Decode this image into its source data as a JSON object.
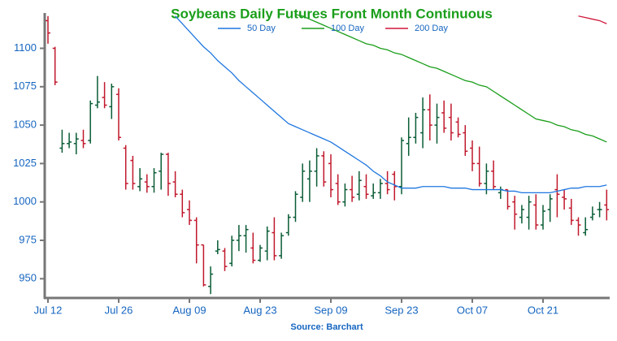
{
  "chart_data": {
    "type": "ohlc",
    "title": "Soybeans Daily Futures Front Month Continuous",
    "source": "Source: Barchart",
    "categories": [
      "Jul 12",
      null,
      null,
      null,
      null,
      null,
      null,
      null,
      null,
      null,
      "Jul 26",
      null,
      null,
      null,
      null,
      null,
      null,
      null,
      null,
      null,
      "Aug 09",
      null,
      null,
      null,
      null,
      null,
      null,
      null,
      null,
      null,
      "Aug 23",
      null,
      null,
      null,
      null,
      null,
      null,
      null,
      null,
      null,
      "Sep 09",
      null,
      null,
      null,
      null,
      null,
      null,
      null,
      null,
      null,
      "Sep 23",
      null,
      null,
      null,
      null,
      null,
      null,
      null,
      null,
      null,
      "Oct 07",
      null,
      null,
      null,
      null,
      null,
      null,
      null,
      null,
      null,
      "Oct 21",
      null,
      null,
      null,
      null,
      null,
      null,
      null,
      null,
      null
    ],
    "open": [
      1118,
      1100,
      1035,
      1038,
      1038,
      1040,
      1040,
      1063,
      1068,
      1062,
      1070,
      1035,
      1027,
      1010,
      1013,
      1010,
      1020,
      1031,
      1013,
      1005,
      995,
      988,
      972,
      945,
      968,
      968,
      960,
      975,
      978,
      970,
      962,
      968,
      980,
      965,
      980,
      990,
      1003,
      1015,
      1020,
      1030,
      1025,
      1012,
      1000,
      1008,
      1005,
      1010,
      1004,
      1006,
      1012,
      1018,
      1010,
      1038,
      1042,
      1045,
      1060,
      1050,
      1058,
      1055,
      1052,
      1045,
      1035,
      1025,
      1012,
      1020,
      1006,
      1008,
      1000,
      990,
      990,
      998,
      985,
      995,
      1008,
      1003,
      996,
      988,
      980,
      990,
      995,
      998
    ],
    "high": [
      1121,
      1101,
      1047,
      1045,
      1045,
      1047,
      1066,
      1082,
      1078,
      1077,
      1074,
      1037,
      1030,
      1022,
      1018,
      1022,
      1032,
      1032,
      1020,
      1008,
      1001,
      990,
      972,
      958,
      975,
      970,
      978,
      985,
      985,
      980,
      972,
      984,
      990,
      980,
      992,
      1007,
      1025,
      1027,
      1035,
      1033,
      1031,
      1018,
      1012,
      1017,
      1020,
      1018,
      1012,
      1015,
      1020,
      1020,
      1042,
      1055,
      1058,
      1068,
      1070,
      1064,
      1066,
      1064,
      1055,
      1050,
      1040,
      1036,
      1025,
      1027,
      1010,
      1008,
      1004,
      998,
      1004,
      1005,
      998,
      1005,
      1018,
      1008,
      1002,
      990,
      990,
      997,
      1000,
      1008
    ],
    "low": [
      1103,
      1076,
      1032,
      1035,
      1031,
      1035,
      1038,
      1061,
      1061,
      1054,
      1040,
      1008,
      1008,
      1007,
      1006,
      1006,
      1008,
      1004,
      1003,
      990,
      985,
      960,
      945,
      940,
      966,
      955,
      958,
      968,
      967,
      960,
      961,
      962,
      962,
      963,
      978,
      987,
      1000,
      1000,
      1010,
      1010,
      1003,
      998,
      997,
      1000,
      1001,
      1002,
      1002,
      1002,
      1005,
      1001,
      1005,
      1030,
      1038,
      1035,
      1040,
      1038,
      1045,
      1040,
      1042,
      1030,
      1020,
      1010,
      1005,
      1008,
      1002,
      995,
      982,
      986,
      982,
      982,
      982,
      987,
      990,
      995,
      985,
      978,
      978,
      988,
      990,
      988
    ],
    "close": [
      1110,
      1078,
      1038,
      1039,
      1041,
      1038,
      1064,
      1065,
      1063,
      1075,
      1042,
      1012,
      1012,
      1015,
      1010,
      1019,
      1031,
      1012,
      1005,
      993,
      988,
      972,
      946,
      953,
      969,
      958,
      975,
      978,
      982,
      962,
      970,
      981,
      965,
      978,
      990,
      1005,
      1020,
      1020,
      1030,
      1013,
      1008,
      1000,
      1008,
      1003,
      1014,
      1005,
      1006,
      1012,
      1008,
      1010,
      1040,
      1042,
      1055,
      1060,
      1050,
      1055,
      1048,
      1045,
      1044,
      1033,
      1025,
      1012,
      1020,
      1010,
      1008,
      997,
      992,
      995,
      1000,
      985,
      994,
      1002,
      1005,
      1002,
      988,
      985,
      982,
      992,
      995,
      995
    ],
    "up_color": "#0a5c36",
    "down_color": "#c0182c",
    "series": [
      {
        "name": "50 Day",
        "color": "#1f77e0",
        "values": [
          null,
          null,
          null,
          null,
          null,
          null,
          null,
          null,
          null,
          null,
          null,
          null,
          null,
          null,
          null,
          null,
          null,
          null,
          1121,
          1116,
          1111,
          1106,
          1101,
          1097,
          1092,
          1088,
          1084,
          1079,
          1075,
          1071,
          1067,
          1063,
          1059,
          1055,
          1051,
          1049,
          1047,
          1045,
          1043,
          1041,
          1039,
          1036,
          1033,
          1030,
          1027,
          1024,
          1020,
          1017,
          1013,
          1011,
          1009,
          1009,
          1009,
          1010,
          1010,
          1010,
          1010,
          1009,
          1009,
          1009,
          1008,
          1008,
          1008,
          1008,
          1008,
          1007,
          1007,
          1006,
          1006,
          1006,
          1006,
          1006,
          1007,
          1008,
          1009,
          1009,
          1010,
          1010,
          1010,
          1011
        ]
      },
      {
        "name": "100 Day",
        "color": "#1a9e1a",
        "values": [
          null,
          null,
          null,
          null,
          null,
          null,
          null,
          null,
          null,
          null,
          null,
          null,
          null,
          null,
          null,
          null,
          null,
          null,
          null,
          null,
          null,
          null,
          null,
          null,
          null,
          null,
          null,
          null,
          null,
          null,
          null,
          null,
          null,
          null,
          null,
          1122,
          1121,
          1119,
          1117,
          1115,
          1113,
          1111,
          1109,
          1107,
          1105,
          1103,
          1102,
          1100,
          1099,
          1097,
          1096,
          1094,
          1092,
          1090,
          1088,
          1087,
          1085,
          1083,
          1081,
          1079,
          1078,
          1076,
          1075,
          1072,
          1069,
          1066,
          1063,
          1060,
          1057,
          1054,
          1053,
          1052,
          1050,
          1049,
          1047,
          1046,
          1044,
          1043,
          1041,
          1039
        ]
      },
      {
        "name": "200 Day",
        "color": "#d0163a",
        "values": [
          null,
          null,
          null,
          null,
          null,
          null,
          null,
          null,
          null,
          null,
          null,
          null,
          null,
          null,
          null,
          null,
          null,
          null,
          null,
          null,
          null,
          null,
          null,
          null,
          null,
          null,
          null,
          null,
          null,
          null,
          null,
          null,
          null,
          null,
          null,
          null,
          null,
          null,
          null,
          null,
          null,
          null,
          null,
          null,
          null,
          null,
          null,
          null,
          null,
          null,
          null,
          null,
          null,
          null,
          null,
          null,
          null,
          null,
          null,
          null,
          null,
          null,
          null,
          null,
          null,
          null,
          null,
          null,
          null,
          null,
          null,
          null,
          null,
          null,
          null,
          1121,
          1120,
          1119,
          1118,
          1116
        ]
      }
    ],
    "ylim": [
      938,
      1123
    ],
    "yticks": [
      950,
      975,
      1000,
      1025,
      1050,
      1075,
      1100
    ]
  }
}
